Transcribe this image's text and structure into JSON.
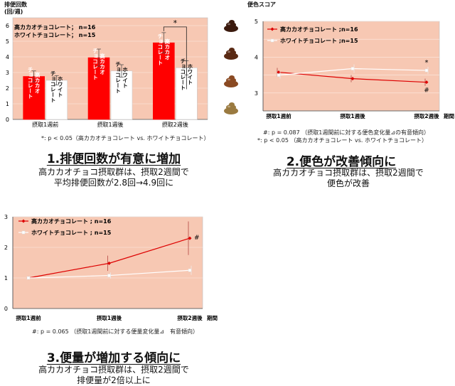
{
  "chart_data": [
    {
      "type": "bar",
      "ylabel": "排便回数\n(回/週)",
      "categories": [
        "摂取1週前",
        "摂取1週後",
        "摂取2週後"
      ],
      "ylim": [
        0,
        6.5
      ],
      "yticks": [
        0,
        1,
        2,
        3,
        4,
        5,
        6
      ],
      "series": [
        {
          "name": "高カカオチョコレート",
          "bar_label": [
            "高カカオ",
            "チョコレート"
          ],
          "values": [
            2.75,
            3.95,
            4.9
          ],
          "errors": [
            0.35,
            0.55,
            0.65
          ],
          "color": "#ff0000"
        },
        {
          "name": "ホワイトチョコレート",
          "bar_label": [
            "ホワイト",
            "チョコレート"
          ],
          "values": [
            2.5,
            3.1,
            3.3
          ],
          "errors": [
            0.3,
            0.4,
            0.45
          ],
          "color": "#ffffff"
        }
      ],
      "legend": [
        "高カカオチョコレート； n=16",
        "ホワイトチョコレート； n=15"
      ],
      "significance_mark": "*",
      "footnote": "*: p < 0.05（高カカオチョコレート vs. ホワイトチョコレート）",
      "heading": "1.排便回数が有意に増加",
      "description": [
        "高カカオチョコ摂取群は、摂取2週間で",
        "平均排便回数が2.8回→4.9回に"
      ]
    },
    {
      "type": "line",
      "ylabel": "便色スコア",
      "categories": [
        "摂取1週前",
        "摂取1週後",
        "摂取2週後"
      ],
      "xaxis_end_label": "期間",
      "ylim": [
        2.5,
        5
      ],
      "yticks": [
        2.5,
        3,
        3.5,
        4,
        4.5,
        5
      ],
      "ytick_labels": [
        "",
        "3",
        "",
        "4",
        "",
        "5"
      ],
      "series": [
        {
          "name": "高カカオチョコレート ;n=16",
          "values": [
            3.58,
            3.4,
            3.3
          ],
          "errors": [
            0.12,
            0.1,
            0.1
          ],
          "color": "#dd0000"
        },
        {
          "name": "ホワイトチョコレート ;n=15",
          "values": [
            3.5,
            3.68,
            3.63
          ],
          "errors": [
            0.1,
            0.12,
            0.1
          ],
          "color": "#ffffff"
        }
      ],
      "marks": {
        "star": "*",
        "hash": "#"
      },
      "footnotes": [
        "#: p = 0.087 （摂取1週間前に対する便色変化量⊿の有意傾向）",
        "*: p < 0.05 （高カカオチョコレート vs. ホワイトチョコレート）"
      ],
      "heading": "2.便色が改善傾向に",
      "description": [
        "高カカオチョコ摂取群は、摂取2週間で",
        "便色が改善"
      ]
    },
    {
      "type": "line",
      "categories": [
        "摂取1週前",
        "摂取1週後",
        "摂取2週後"
      ],
      "xaxis_end_label": "期間",
      "ylim": [
        0,
        3
      ],
      "yticks": [
        0,
        1,
        2,
        3
      ],
      "series": [
        {
          "name": "高カカオチョコレート ; n=16",
          "values": [
            1.0,
            1.48,
            2.3
          ],
          "errors": [
            0,
            0.25,
            0.55
          ],
          "color": "#dd0000"
        },
        {
          "name": "ホワイトチョコレート ; n=15",
          "values": [
            1.0,
            1.08,
            1.25
          ],
          "errors": [
            0,
            0.1,
            0.15
          ],
          "color": "#ffffff"
        }
      ],
      "marks": {
        "hash": "#"
      },
      "footnote": "#: p = 0.065 （摂取1週間前に対する便量変化量⊿　有意傾向）",
      "heading": "3.便量が増加する傾向に",
      "description": [
        "高カカオチョコ摂取群は、摂取2週間で",
        "排便量が2倍以上に"
      ]
    }
  ]
}
